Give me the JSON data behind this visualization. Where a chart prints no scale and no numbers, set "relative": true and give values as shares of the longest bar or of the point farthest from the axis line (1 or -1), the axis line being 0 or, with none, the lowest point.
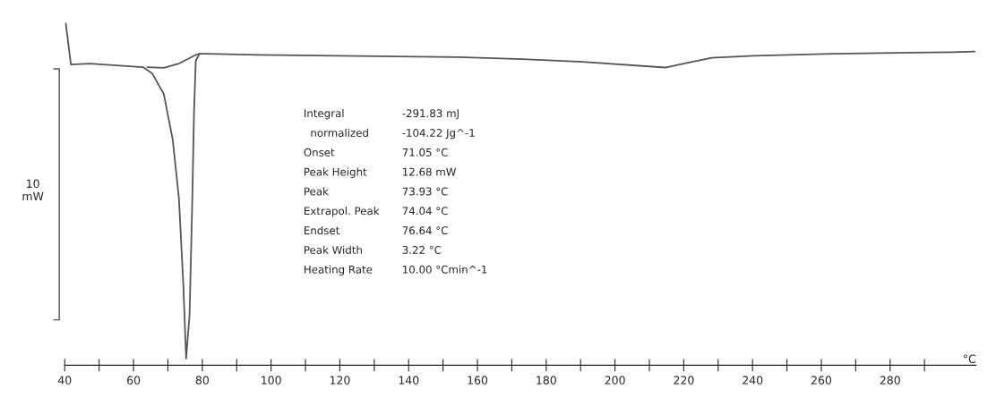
{
  "chart_data": {
    "type": "line",
    "relative": true,
    "xlabel": "°C",
    "xlim": [
      40,
      305
    ],
    "xticks": [
      40,
      {
        "value": 50,
        "label": null
      },
      60,
      {
        "value": 70,
        "label": null
      },
      80,
      {
        "value": 90,
        "label": null
      },
      100,
      {
        "value": 110,
        "label": null
      },
      120,
      {
        "value": 130,
        "label": null
      },
      140,
      {
        "value": 150,
        "label": null
      },
      160,
      {
        "value": 170,
        "label": null
      },
      180,
      {
        "value": 190,
        "label": null
      },
      200,
      {
        "value": 210,
        "label": null
      },
      220,
      {
        "value": 230,
        "label": null
      },
      240,
      {
        "value": 250,
        "label": null
      },
      260,
      {
        "value": 270,
        "label": null
      },
      280,
      {
        "value": 290,
        "label": null
      }
    ],
    "grid": false,
    "legend": false,
    "marker": "none",
    "line_style": "solid",
    "series": [
      {
        "color": "#555555",
        "x": [
          40.3,
          41.8,
          47.3,
          62.8,
          65.4,
          68.8,
          71.4,
          73.2,
          74.5,
          75.3,
          76.3,
          77.1,
          77.6,
          78.1,
          79.2,
          81.0,
          96.5,
          154.4,
          173.1,
          190.5,
          214.6,
          220.0,
          228.1,
          240.3,
          263.1,
          297.9,
          304.6
        ],
        "values": [
          1.0,
          0.877,
          0.88,
          0.869,
          0.851,
          0.789,
          0.653,
          0.478,
          0.217,
          0.0,
          0.131,
          0.478,
          0.739,
          0.888,
          0.909,
          0.909,
          0.906,
          0.899,
          0.893,
          0.885,
          0.868,
          0.88,
          0.897,
          0.903,
          0.909,
          0.914,
          0.916
        ]
      },
      {
        "color": "#555555",
        "x": [
          64.0,
          68.8,
          73.2,
          76.3,
          78.1,
          79.2
        ],
        "values": [
          0.869,
          0.867,
          0.88,
          0.896,
          0.906,
          0.909
        ]
      }
    ],
    "annotations": [
      "10\nmW",
      "Integral",
      "-291.83 mJ",
      "  normalized",
      "-104.22 Jg^-1",
      "Onset",
      "71.05 °C",
      "Peak Height",
      "12.68 mW",
      "Peak",
      "73.93 °C",
      "Extrapol. Peak",
      "74.04 °C",
      "Endset",
      "76.64 °C",
      "Peak Width",
      "3.22 °C",
      "Heating Rate",
      "10.00 °Cmin^-1"
    ]
  }
}
